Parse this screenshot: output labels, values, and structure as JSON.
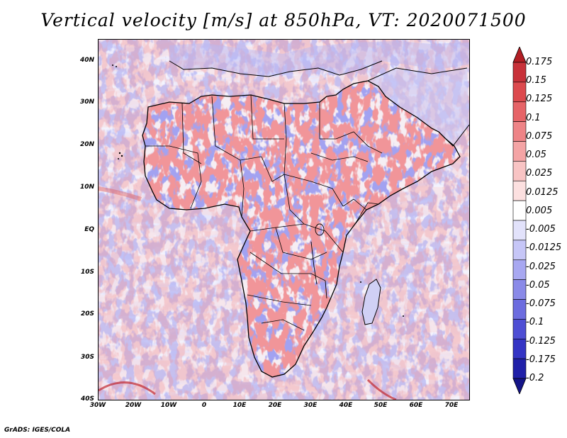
{
  "title": "Vertical velocity [m/s] at 850hPa, VT: 2020071500",
  "footer": "GrADS: IGES/COLA",
  "map": {
    "region": "Africa",
    "lat_labels": [
      "40N",
      "30N",
      "20N",
      "10N",
      "EQ",
      "10S",
      "20S",
      "30S",
      "40S"
    ],
    "lon_labels": [
      "30W",
      "20W",
      "10W",
      "0",
      "10E",
      "20E",
      "30E",
      "40E",
      "50E",
      "60E",
      "70E"
    ]
  },
  "colorbar": {
    "labels": [
      "0.175",
      "0.15",
      "0.125",
      "0.1",
      "0.075",
      "0.05",
      "0.025",
      "0.0125",
      "0.005",
      "-0.005",
      "-0.0125",
      "-0.025",
      "-0.05",
      "-0.075",
      "-0.1",
      "-0.125",
      "-0.175",
      "-0.2"
    ],
    "colors": [
      "#b21e24",
      "#c8323a",
      "#dc4a4e",
      "#e66468",
      "#ee8487",
      "#f4a4a5",
      "#f8c4c4",
      "#fce0e0",
      "#ffffff",
      "#e2e2fb",
      "#c6c6f7",
      "#a8a8f1",
      "#8a8ae8",
      "#6c6cdf",
      "#4e4ed4",
      "#3434c4",
      "#2020a8",
      "#141488"
    ]
  },
  "colors": {
    "positive": "#e05050",
    "negative": "#5050e0",
    "coast": "#000000"
  }
}
